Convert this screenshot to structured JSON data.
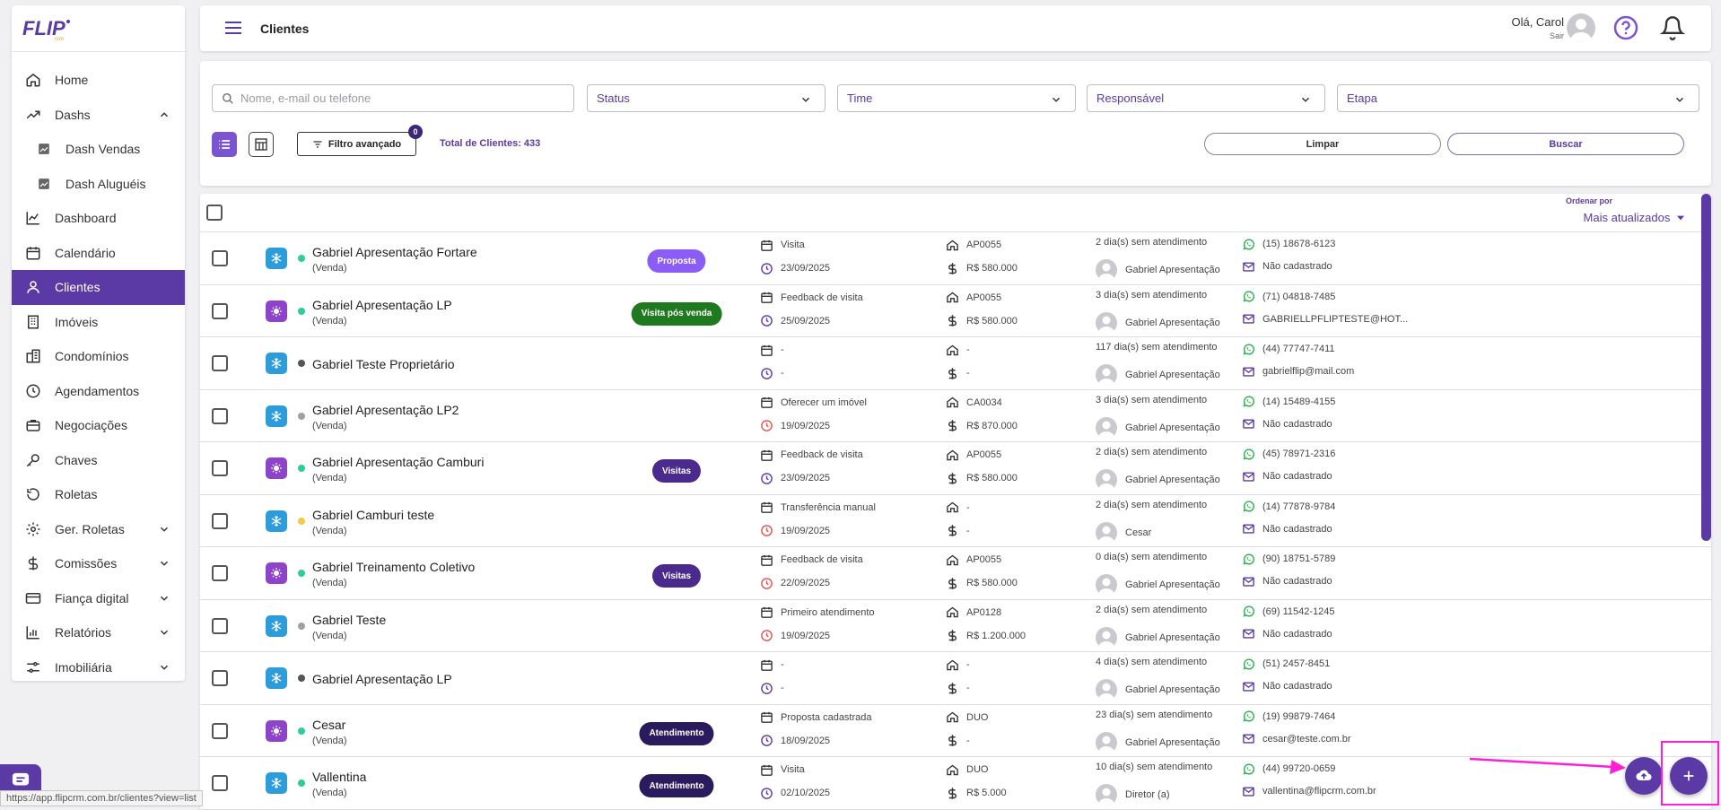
{
  "brand": {
    "logo_text": "FLIP",
    "logo_sub": "crm"
  },
  "sidebar": {
    "items": [
      {
        "label": "Home",
        "icon": "home-icon"
      },
      {
        "label": "Dashs",
        "icon": "trend-icon"
      },
      {
        "label": "Dash Vendas",
        "icon": "chart-icon"
      },
      {
        "label": "Dash Aluguéis",
        "icon": "chart-icon"
      },
      {
        "label": "Dashboard",
        "icon": "line-chart-icon"
      },
      {
        "label": "Calendário",
        "icon": "calendar-icon"
      },
      {
        "label": "Clientes",
        "icon": "user-icon"
      },
      {
        "label": "Imóveis",
        "icon": "building-icon"
      },
      {
        "label": "Condomínios",
        "icon": "buildings-icon"
      },
      {
        "label": "Agendamentos",
        "icon": "clock-icon"
      },
      {
        "label": "Negociações",
        "icon": "briefcase-icon"
      },
      {
        "label": "Chaves",
        "icon": "key-icon"
      },
      {
        "label": "Roletas",
        "icon": "history-icon"
      },
      {
        "label": "Ger. Roletas",
        "icon": "gear-icon"
      },
      {
        "label": "Comissões",
        "icon": "dollar-icon"
      },
      {
        "label": "Fiança digital",
        "icon": "card-icon"
      },
      {
        "label": "Relatórios",
        "icon": "bar-chart-icon"
      },
      {
        "label": "Imobiliária",
        "icon": "sliders-icon"
      }
    ]
  },
  "header": {
    "title": "Clientes",
    "greeting": "Olá, Carol",
    "logout": "Sair"
  },
  "filters": {
    "search_placeholder": "Nome, e-mail ou telefone",
    "status": "Status",
    "time": "Time",
    "responsavel": "Responsável",
    "etapa": "Etapa",
    "advanced": "Filtro avançado",
    "advanced_count": "0",
    "total": "Total de Clientes: 433",
    "clear": "Limpar",
    "search": "Buscar"
  },
  "list": {
    "order_label": "Ordenar por",
    "order_value": "Mais atualizados",
    "rows": [
      {
        "name": "Gabriel Apresentação Fortare",
        "sub": "(Venda)",
        "type": "blue",
        "dot": "#2ecc9a",
        "tag": "Proposta",
        "tag_class": "proposta",
        "event": "Visita",
        "date": "23/09/2025",
        "date_late": false,
        "ref": "AP0055",
        "price": "R$ 580.000",
        "days": "2 dia(s) sem atendimento",
        "resp": "Gabriel Apresentação",
        "phone": "(15) 18678-6123",
        "email": "Não cadastrado"
      },
      {
        "name": "Gabriel Apresentação LP",
        "sub": "(Venda)",
        "type": "purple",
        "dot": "#2ecc9a",
        "tag": "Visita pós venda",
        "tag_class": "visita-pos",
        "event": "Feedback de visita",
        "date": "25/09/2025",
        "date_late": false,
        "ref": "AP0055",
        "price": "R$ 580.000",
        "days": "3 dia(s) sem atendimento",
        "resp": "Gabriel Apresentação",
        "phone": "(71) 04818-7485",
        "email": "GABRIELLPFLIPTESTE@HOT..."
      },
      {
        "name": "Gabriel Teste Proprietário",
        "sub": "",
        "type": "blue",
        "dot": "#555555",
        "tag": "",
        "tag_class": "",
        "event": "-",
        "date": "-",
        "date_late": false,
        "ref": "-",
        "price": "-",
        "days": "117 dia(s) sem atendimento",
        "resp": "Gabriel Apresentação",
        "phone": "(44) 77747-7411",
        "email": "gabrielflip@mail.com"
      },
      {
        "name": "Gabriel Apresentação LP2",
        "sub": "(Venda)",
        "type": "blue",
        "dot": "#a0a0a0",
        "tag": "",
        "tag_class": "",
        "event": "Oferecer um imóvel",
        "date": "19/09/2025",
        "date_late": true,
        "ref": "CA0034",
        "price": "R$ 870.000",
        "days": "3 dia(s) sem atendimento",
        "resp": "Gabriel Apresentação",
        "phone": "(14) 15489-4155",
        "email": "Não cadastrado"
      },
      {
        "name": "Gabriel Apresentação Camburi",
        "sub": "(Venda)",
        "type": "purple",
        "dot": "#2ecc9a",
        "tag": "Visitas",
        "tag_class": "visitas",
        "event": "Feedback de visita",
        "date": "23/09/2025",
        "date_late": false,
        "ref": "AP0055",
        "price": "R$ 580.000",
        "days": "2 dia(s) sem atendimento",
        "resp": "Gabriel Apresentação",
        "phone": "(45) 78971-2316",
        "email": "Não cadastrado"
      },
      {
        "name": "Gabriel Camburi teste",
        "sub": "(Venda)",
        "type": "blue",
        "dot": "#f2c94c",
        "tag": "",
        "tag_class": "",
        "event": "Transferência manual",
        "date": "19/09/2025",
        "date_late": true,
        "ref": "-",
        "price": "-",
        "days": "2 dia(s) sem atendimento",
        "resp": "Cesar",
        "phone": "(14) 77878-9784",
        "email": "Não cadastrado"
      },
      {
        "name": "Gabriel Treinamento Coletivo",
        "sub": "(Venda)",
        "type": "purple",
        "dot": "#2ecc9a",
        "tag": "Visitas",
        "tag_class": "visitas",
        "event": "Feedback de visita",
        "date": "22/09/2025",
        "date_late": true,
        "ref": "AP0055",
        "price": "R$ 580.000",
        "days": "0 dia(s) sem atendimento",
        "resp": "Gabriel Apresentação",
        "phone": "(90) 18751-5789",
        "email": "Não cadastrado"
      },
      {
        "name": "Gabriel Teste",
        "sub": "(Venda)",
        "type": "blue",
        "dot": "#a0a0a0",
        "tag": "",
        "tag_class": "",
        "event": "Primeiro atendimento",
        "date": "19/09/2025",
        "date_late": true,
        "ref": "AP0128",
        "price": "R$ 1.200.000",
        "days": "2 dia(s) sem atendimento",
        "resp": "Gabriel Apresentação",
        "phone": "(69) 11542-1245",
        "email": "Não cadastrado"
      },
      {
        "name": "Gabriel Apresentação LP",
        "sub": "",
        "type": "blue",
        "dot": "#555555",
        "tag": "",
        "tag_class": "",
        "event": "-",
        "date": "-",
        "date_late": false,
        "ref": "-",
        "price": "-",
        "days": "4 dia(s) sem atendimento",
        "resp": "Gabriel Apresentação",
        "phone": "(51) 2457-8451",
        "email": "Não cadastrado"
      },
      {
        "name": "Cesar",
        "sub": "(Venda)",
        "type": "purple",
        "dot": "#2ecc9a",
        "tag": "Atendimento",
        "tag_class": "atendimento",
        "event": "Proposta cadastrada",
        "date": "18/09/2025",
        "date_late": false,
        "ref": "DUO",
        "price": "-",
        "days": "23 dia(s) sem atendimento",
        "resp": "Gabriel Apresentação",
        "phone": "(19) 99879-7464",
        "email": "cesar@teste.com.br"
      },
      {
        "name": "Vallentina",
        "sub": "(Venda)",
        "type": "blue",
        "dot": "#2ecc9a",
        "tag": "Atendimento",
        "tag_class": "atendimento",
        "event": "Visita",
        "date": "02/10/2025",
        "date_late": false,
        "ref": "DUO",
        "price": "R$ 5.000",
        "days": "10 dia(s) sem atendimento",
        "resp": "Diretor (a)",
        "phone": "(44) 99720-0659",
        "email": "vallentina@flipcrm.com.br"
      }
    ]
  },
  "status_bar": {
    "url": "https://app.flipcrm.com.br/clientes?view=list"
  },
  "colors": {
    "primary": "#5b3aa5",
    "accent": "#7b54d0",
    "highlight": "#ff1fd6",
    "whatsapp": "#25b04a",
    "late": "#e05252"
  }
}
